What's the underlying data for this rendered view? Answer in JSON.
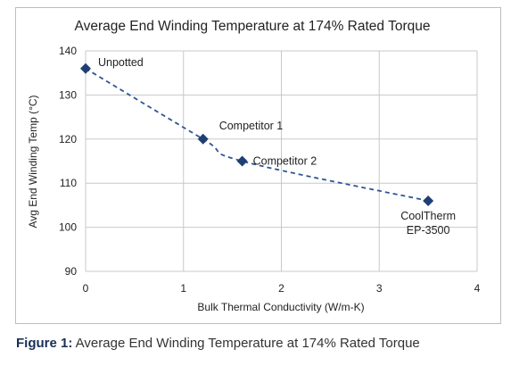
{
  "chart_data": {
    "type": "scatter",
    "title": "Average End Winding Temperature at 174% Rated Torque",
    "xlabel": "Bulk Thermal Conductivity (W/m-K)",
    "ylabel": "Avg End Winding Temp (°C)",
    "xlim": [
      0,
      4
    ],
    "ylim": [
      90,
      140
    ],
    "xticks": [
      "0",
      "1",
      "2",
      "3",
      "4"
    ],
    "yticks": [
      "90",
      "100",
      "110",
      "120",
      "130",
      "140"
    ],
    "grid": "horizontal and vertical",
    "trendline": "dashed polynomial",
    "colors": {
      "marker": "#1f3f73",
      "trend": "#2e5596",
      "grid": "#c8c8c8"
    },
    "points": [
      {
        "label": "Unpotted",
        "x": 0,
        "y": 136
      },
      {
        "label": "Competitor 1",
        "x": 1.2,
        "y": 120
      },
      {
        "label": "Competitor 2",
        "x": 1.6,
        "y": 115
      },
      {
        "label": "CoolTherm EP-3500",
        "label_lines": [
          "CoolTherm",
          "EP-3500"
        ],
        "x": 3.5,
        "y": 106
      }
    ]
  },
  "caption": {
    "prefix": "Figure 1:",
    "text": " Average End Winding Temperature at 174% Rated Torque"
  }
}
